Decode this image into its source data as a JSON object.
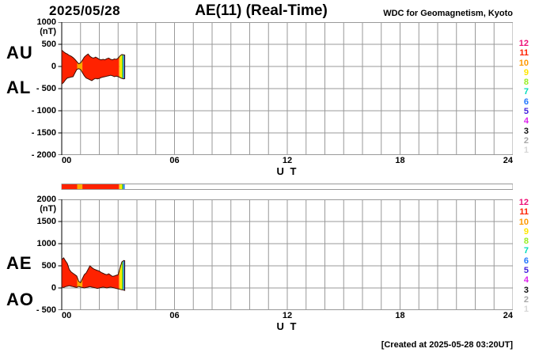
{
  "header": {
    "date": "2025/05/28",
    "title": "AE(11) (Real-Time)",
    "credit": "WDC for Geomagnetism, Kyoto"
  },
  "footer": {
    "created": "[Created at 2025-05-28 03:20UT]"
  },
  "colors": {
    "grid": "#999999",
    "axis": "#000000",
    "outline": "#3b0d00",
    "bar_border": "#999999",
    "bar_background": "#ffffff"
  },
  "legend": {
    "entries": [
      {
        "label": "12",
        "color": "#ee1177"
      },
      {
        "label": "11",
        "color": "#ff2200"
      },
      {
        "label": "10",
        "color": "#ff9900"
      },
      {
        "label": "9",
        "color": "#ffe600"
      },
      {
        "label": "8",
        "color": "#99ee22"
      },
      {
        "label": "7",
        "color": "#00ddbb"
      },
      {
        "label": "6",
        "color": "#2277ff"
      },
      {
        "label": "5",
        "color": "#4422dd"
      },
      {
        "label": "4",
        "color": "#dd22ee"
      },
      {
        "label": "3",
        "color": "#111111"
      },
      {
        "label": "2",
        "color": "#a8a8a8"
      },
      {
        "label": "1",
        "color": "#d6d6d6"
      }
    ]
  },
  "coverage_bands": [
    {
      "start": 0,
      "end": 0.82,
      "color": "#ff2200"
    },
    {
      "start": 0.82,
      "end": 1.1,
      "color": "#ffaa00"
    },
    {
      "start": 1.1,
      "end": 3.04,
      "color": "#ff2200"
    },
    {
      "start": 3.04,
      "end": 3.1,
      "color": "#ff9900"
    },
    {
      "start": 3.1,
      "end": 3.2,
      "color": "#ffee00"
    },
    {
      "start": 3.2,
      "end": 3.27,
      "color": "#55cc22"
    },
    {
      "start": 3.27,
      "end": 3.35,
      "color": "#2b7bff"
    }
  ],
  "coverage_bar": {
    "extent": [
      0,
      24
    ]
  },
  "chart_data": [
    {
      "type": "area",
      "title": "AU / AL indices",
      "unit": "(nT)",
      "left_labels": [
        "AU",
        "AL"
      ],
      "ylim": [
        -2000,
        1000
      ],
      "yticks": [
        {
          "v": 1000,
          "label": "1000"
        },
        {
          "v": 500,
          "label": "500"
        },
        {
          "v": 0,
          "label": "0"
        },
        {
          "v": -500,
          "label": "- 500"
        },
        {
          "v": -1000,
          "label": "- 1000"
        },
        {
          "v": -1500,
          "label": "- 1500"
        },
        {
          "v": -2000,
          "label": "- 2000"
        }
      ],
      "xlim": [
        0,
        24
      ],
      "xticks": [
        {
          "t": 0,
          "label": "00",
          "align": "left"
        },
        {
          "t": 6,
          "label": "06",
          "align": "center"
        },
        {
          "t": 12,
          "label": "12",
          "align": "center"
        },
        {
          "t": 18,
          "label": "18",
          "align": "center"
        },
        {
          "t": 24,
          "label": "24",
          "align": "right"
        }
      ],
      "xlabel": "U T",
      "x": [
        0,
        0.1,
        0.2,
        0.3,
        0.4,
        0.5,
        0.6,
        0.7,
        0.8,
        0.9,
        1,
        1.1,
        1.2,
        1.3,
        1.4,
        1.5,
        1.6,
        1.7,
        1.8,
        1.9,
        2,
        2.1,
        2.2,
        2.3,
        2.4,
        2.5,
        2.6,
        2.7,
        2.8,
        2.9,
        3,
        3.1,
        3.2,
        3.3,
        3.35
      ],
      "series": [
        {
          "name": "AU",
          "values": [
            370,
            330,
            300,
            280,
            250,
            230,
            200,
            160,
            110,
            60,
            80,
            140,
            210,
            250,
            280,
            230,
            200,
            190,
            210,
            190,
            160,
            150,
            160,
            150,
            175,
            190,
            160,
            150,
            170,
            160,
            185,
            240,
            270,
            260,
            255
          ]
        },
        {
          "name": "AL",
          "values": [
            -400,
            -360,
            -300,
            -260,
            -250,
            -240,
            -230,
            -150,
            -70,
            -50,
            -70,
            -140,
            -210,
            -260,
            -280,
            -300,
            -320,
            -290,
            -270,
            -280,
            -270,
            -250,
            -240,
            -230,
            -220,
            -210,
            -200,
            -210,
            -230,
            -220,
            -230,
            -250,
            -270,
            -280,
            -275
          ]
        }
      ]
    },
    {
      "type": "area",
      "title": "AE / AO indices",
      "unit": "(nT)",
      "left_labels": [
        "AE",
        "AO"
      ],
      "ylim": [
        -500,
        2000
      ],
      "yticks": [
        {
          "v": 2000,
          "label": "2000"
        },
        {
          "v": 1500,
          "label": "1500"
        },
        {
          "v": 1000,
          "label": "1000"
        },
        {
          "v": 500,
          "label": "500"
        },
        {
          "v": 0,
          "label": "0"
        },
        {
          "v": -500,
          "label": "- 500"
        }
      ],
      "xlim": [
        0,
        24
      ],
      "xticks": [
        {
          "t": 0,
          "label": "00",
          "align": "left"
        },
        {
          "t": 6,
          "label": "06",
          "align": "center"
        },
        {
          "t": 12,
          "label": "12",
          "align": "center"
        },
        {
          "t": 18,
          "label": "18",
          "align": "center"
        },
        {
          "t": 24,
          "label": "24",
          "align": "right"
        }
      ],
      "xlabel": "U T",
      "x": [
        0,
        0.1,
        0.2,
        0.3,
        0.4,
        0.5,
        0.6,
        0.7,
        0.8,
        0.9,
        1,
        1.1,
        1.2,
        1.3,
        1.4,
        1.5,
        1.6,
        1.7,
        1.8,
        1.9,
        2,
        2.1,
        2.2,
        2.3,
        2.4,
        2.5,
        2.6,
        2.7,
        2.8,
        2.9,
        3,
        3.1,
        3.2,
        3.3,
        3.35
      ],
      "series": [
        {
          "name": "AE",
          "values": [
            640,
            680,
            610,
            550,
            420,
            360,
            330,
            300,
            270,
            150,
            120,
            210,
            300,
            340,
            420,
            500,
            460,
            430,
            410,
            395,
            380,
            350,
            330,
            310,
            300,
            320,
            290,
            260,
            270,
            285,
            300,
            450,
            590,
            620,
            615
          ]
        },
        {
          "name": "AO",
          "values": [
            20,
            10,
            30,
            40,
            50,
            40,
            30,
            20,
            10,
            35,
            20,
            10,
            0,
            10,
            20,
            30,
            20,
            10,
            0,
            -10,
            0,
            10,
            20,
            10,
            0,
            10,
            20,
            10,
            0,
            -10,
            -20,
            -30,
            -40,
            -50,
            -55
          ]
        }
      ]
    }
  ]
}
